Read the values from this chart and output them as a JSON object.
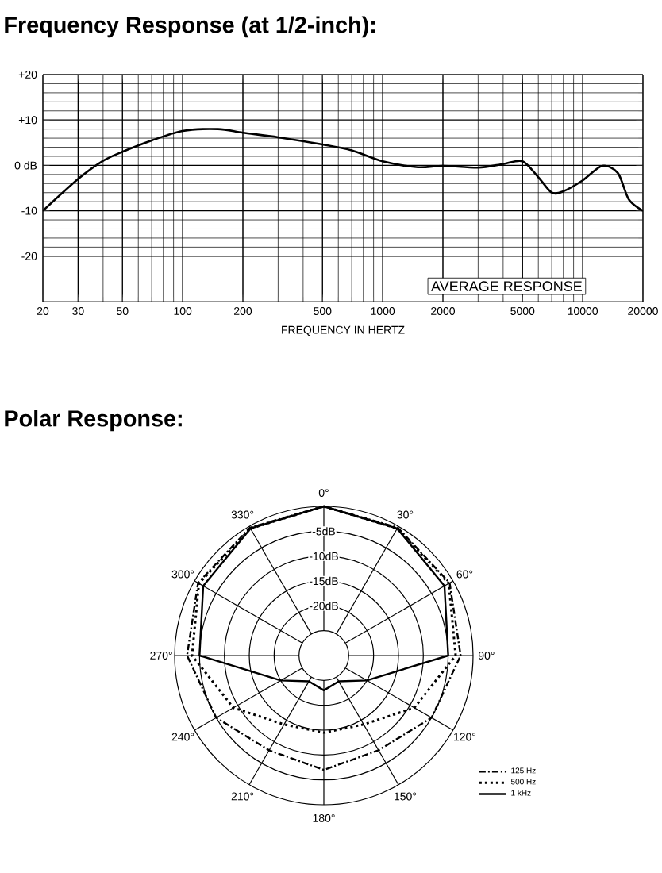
{
  "chart_data": [
    {
      "type": "line",
      "title": "Frequency Response (at 1/2-inch):",
      "xlabel": "FREQUENCY IN HERTZ",
      "log": "x",
      "x": [
        20,
        30,
        40,
        50,
        70,
        100,
        150,
        200,
        300,
        500,
        700,
        1000,
        1500,
        2000,
        3000,
        4000,
        5000,
        6000,
        7000,
        8000,
        10000,
        12500,
        15000,
        17000,
        20000
      ],
      "series": [
        {
          "color": "#000000",
          "values": [
            -10,
            -3,
            1,
            3,
            5.5,
            7.6,
            8,
            7.2,
            6.2,
            4.6,
            3.3,
            0.9,
            -0.4,
            -0.1,
            -0.5,
            0.3,
            0.9,
            -2.6,
            -6,
            -5.7,
            -3.3,
            -0.1,
            -1.7,
            -7.5,
            -10
          ]
        }
      ],
      "xlim": [
        20,
        20000
      ],
      "ylim": [
        -30,
        20
      ],
      "xticks": [
        20,
        30,
        50,
        100,
        200,
        500,
        1000,
        2000,
        5000,
        10000,
        20000
      ],
      "yticks": [
        {
          "value": 20,
          "label": "+20"
        },
        {
          "value": 10,
          "label": "+10"
        },
        {
          "value": 0,
          "label": "0 dB"
        },
        -10,
        -20
      ],
      "grid": true,
      "annotations": [
        "AVERAGE RESPONSE"
      ]
    },
    {
      "type": "radar",
      "title": "Polar Response:",
      "categories": [
        "0°",
        "30°",
        "60°",
        "90°",
        "120°",
        "150°",
        "180°",
        "210°",
        "240°",
        "270°",
        "300°",
        "330°"
      ],
      "series": [
        {
          "name": "125 Hz",
          "color": "#000000",
          "line_style": "dashed",
          "values": [
            0,
            -0.3,
            -0.8,
            -2.5,
            -5,
            -8,
            -7,
            -8,
            -5,
            -2.5,
            -0.8,
            -0.3
          ]
        },
        {
          "name": "500 Hz",
          "color": "#000000",
          "line_style": "dotted",
          "values": [
            0,
            -0.5,
            -1,
            -3.5,
            -9,
            -14,
            -14.5,
            -14,
            -9,
            -3.5,
            -1,
            -0.5
          ]
        },
        {
          "name": "1 kHz",
          "color": "#000000",
          "line_style": "solid",
          "values": [
            0,
            -0.5,
            -2,
            -5,
            -20,
            -24,
            -23,
            -24,
            -20,
            -5,
            -2,
            -0.5
          ]
        }
      ],
      "ylim": [
        -30,
        0
      ],
      "yticks": [
        {
          "value": -20,
          "label": "-20dB"
        },
        {
          "value": -15,
          "label": "-15dB"
        },
        {
          "value": -10,
          "label": "-10dB"
        },
        {
          "value": -5,
          "label": "-5dB"
        }
      ],
      "grid": true,
      "legend": "bottom right"
    }
  ]
}
